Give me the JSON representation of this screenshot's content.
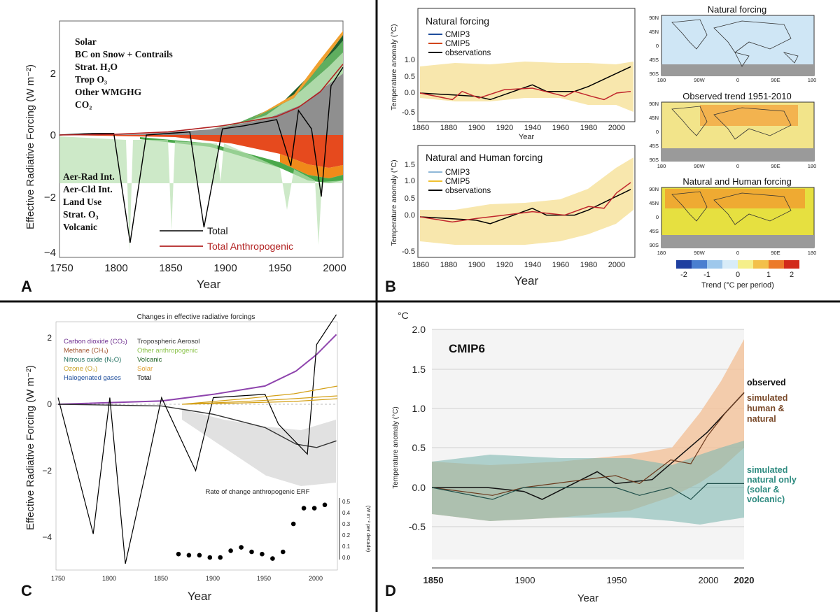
{
  "panels": {
    "A": {
      "letter": "A",
      "ylabel": "Effective Radiative Forcing (W m⁻²)",
      "xlabel": "Year",
      "yticks": [
        "2",
        "0",
        "−2",
        "−4"
      ],
      "xticks": [
        "1750",
        "1800",
        "1850",
        "1900",
        "1950",
        "2000"
      ],
      "legend_top": [
        "Solar",
        "BC on Snow + Contrails",
        "Strat. H₂O",
        "Trop O₃",
        "Other WMGHG",
        "CO₂"
      ],
      "legend_bottom": [
        "Aer-Rad Int.",
        "Aer-Cld Int.",
        "Land Use",
        "Strat. O₃",
        "Volcanic"
      ],
      "line_total": "Total",
      "line_anthro": "Total Anthropogenic"
    },
    "B": {
      "letter": "B",
      "xlabel": "Year",
      "top_title": "Natural forcing",
      "bottom_title": "Natural and Human forcing",
      "ylabel": "Temperature anomaly (°C)",
      "top_xlabel": "Year",
      "yticks": [
        "1.0",
        "0.5",
        "0.0",
        "-0.5"
      ],
      "y1label": "1.5",
      "xticks": [
        "1860",
        "1880",
        "1900",
        "1920",
        "1940",
        "1960",
        "1980",
        "2000"
      ],
      "legend": [
        "CMIP3",
        "CMIP5",
        "observations"
      ],
      "map_titles": [
        "Natural forcing",
        "Observed trend 1951-2010",
        "Natural and Human forcing"
      ],
      "map_lat": [
        "90N",
        "45N",
        "0",
        "45S",
        "90S"
      ],
      "map_lon": [
        "180",
        "90W",
        "0",
        "90E",
        "180"
      ],
      "colorbar_ticks": [
        "-2",
        "-1",
        "0",
        "1",
        "2"
      ],
      "colorbar_label": "Trend (°C per period)"
    },
    "C": {
      "letter": "C",
      "title": "Changes in effective radiative forcings",
      "ylabel": "Effective Radiative Forcing (W m⁻²)",
      "xlabel": "Year",
      "yticks": [
        "2",
        "0",
        "−2",
        "−4"
      ],
      "xticks": [
        "1750",
        "1800",
        "1850",
        "1900",
        "1950",
        "2000"
      ],
      "legend_left": [
        "Carbon dioxide (CO₂)",
        "Methane (CH₄)",
        "Nitrous oxide (N₂O)",
        "Ozone (O₃)",
        "Halogenated gases"
      ],
      "legend_right": [
        "Tropospheric Aerosol",
        "Other anthropogenic",
        "Volcanic",
        "Solar",
        "Total"
      ],
      "inset_title": "Rate of change anthropogenic ERF",
      "inset_yticks": [
        "0.5",
        "0.4",
        "0.3",
        "0.2",
        "0.1",
        "0.0"
      ],
      "inset_ylabel": "(W m⁻² per decade)"
    },
    "D": {
      "letter": "D",
      "unit": "°C",
      "label": "CMIP6",
      "ylabel": "Temperature anomaly (°C)",
      "xlabel": "Year",
      "yticks": [
        "2.0",
        "1.5",
        "1.0",
        "0.5",
        "0.0",
        "-0.5"
      ],
      "xticks": [
        "1850",
        "1900",
        "1950",
        "2000",
        "2020"
      ],
      "label_observed": "observed",
      "label_human": [
        "simulated",
        "human &",
        "natural"
      ],
      "label_natural": [
        "simulated",
        "natural only",
        "(solar &",
        "volcanic)"
      ]
    }
  },
  "colors": {
    "divider": "#111111",
    "total": "#000000",
    "anthro": "#b22222",
    "cmip3": "#1f4e9c",
    "cmip5": "#d2461c",
    "human_band": "#f2c29a",
    "natural_band": "#7fb7b0",
    "human_text": "#7a4a2a",
    "natural_text": "#2e8b80"
  },
  "chart_data": [
    {
      "panel": "A",
      "type": "area",
      "xlabel": "Year",
      "xlim": [
        1750,
        2011
      ],
      "ylim": [
        -4,
        3.5
      ],
      "series": [
        {
          "name": "Total",
          "x": [
            1750,
            1780,
            1800,
            1815,
            1830,
            1850,
            1870,
            1883,
            1900,
            1920,
            1950,
            1963,
            1970,
            1982,
            1991,
            2000,
            2011
          ],
          "values": [
            0.0,
            0.05,
            0.05,
            -3.5,
            0.0,
            0.05,
            0.1,
            -3.0,
            0.2,
            0.3,
            0.5,
            -1.0,
            0.8,
            0.2,
            -2.0,
            1.6,
            2.2
          ]
        },
        {
          "name": "Total Anthropogenic",
          "x": [
            1750,
            1800,
            1850,
            1900,
            1950,
            1970,
            1990,
            2011
          ],
          "values": [
            0.0,
            0.02,
            0.1,
            0.3,
            0.6,
            0.9,
            1.4,
            2.3
          ]
        },
        {
          "name": "CO₂",
          "x": [
            1750,
            1850,
            1900,
            1950,
            1980,
            2011
          ],
          "values": [
            0.0,
            0.15,
            0.4,
            0.6,
            1.0,
            1.8
          ]
        },
        {
          "name": "Aer-Cld Int.",
          "x": [
            1750,
            1850,
            1900,
            1950,
            1980,
            2011
          ],
          "values": [
            0.0,
            -0.05,
            -0.15,
            -0.35,
            -0.5,
            -0.45
          ]
        }
      ]
    },
    {
      "panel": "B-top",
      "type": "line",
      "title": "Natural forcing",
      "xlabel": "Year",
      "ylabel": "Temperature anomaly (°C)",
      "xlim": [
        1860,
        2012
      ],
      "ylim": [
        -0.5,
        1.1
      ],
      "series": [
        {
          "name": "observations",
          "x": [
            1860,
            1880,
            1900,
            1910,
            1940,
            1950,
            1970,
            1980,
            2000,
            2010
          ],
          "values": [
            0.0,
            -0.05,
            -0.1,
            -0.2,
            0.25,
            0.05,
            0.05,
            0.2,
            0.6,
            0.8
          ]
        },
        {
          "name": "CMIP5",
          "x": [
            1860,
            1883,
            1890,
            1902,
            1920,
            1940,
            1963,
            1970,
            1982,
            1991,
            2000,
            2010
          ],
          "values": [
            0.0,
            -0.2,
            0.05,
            -0.15,
            0.1,
            0.15,
            -0.1,
            0.05,
            -0.1,
            -0.2,
            0.0,
            0.05
          ]
        }
      ]
    },
    {
      "panel": "B-bottom",
      "type": "line",
      "title": "Natural and Human forcing",
      "xlabel": "Year",
      "ylabel": "Temperature anomaly (°C)",
      "xlim": [
        1860,
        2012
      ],
      "ylim": [
        -0.5,
        1.4
      ],
      "series": [
        {
          "name": "observations",
          "x": [
            1860,
            1880,
            1900,
            1910,
            1940,
            1950,
            1970,
            1980,
            2000,
            2010
          ],
          "values": [
            0.0,
            -0.05,
            -0.1,
            -0.2,
            0.25,
            0.05,
            0.05,
            0.2,
            0.6,
            0.8
          ]
        },
        {
          "name": "CMIP5",
          "x": [
            1860,
            1883,
            1900,
            1920,
            1940,
            1963,
            1980,
            1991,
            2000,
            2010
          ],
          "values": [
            0.0,
            -0.15,
            -0.05,
            0.05,
            0.15,
            0.05,
            0.3,
            0.25,
            0.7,
            1.0
          ]
        }
      ]
    },
    {
      "panel": "C",
      "type": "line",
      "title": "Changes in effective radiative forcings",
      "xlabel": "Year",
      "ylabel": "Effective Radiative Forcing (W m⁻²)",
      "xlim": [
        1750,
        2020
      ],
      "ylim": [
        -5,
        2.5
      ],
      "series": [
        {
          "name": "Carbon dioxide (CO₂)",
          "x": [
            1750,
            1850,
            1900,
            1950,
            1980,
            2000,
            2019
          ],
          "values": [
            0.0,
            0.1,
            0.3,
            0.55,
            1.0,
            1.5,
            2.1
          ]
        },
        {
          "name": "Tropospheric Aerosol",
          "x": [
            1750,
            1850,
            1900,
            1950,
            1980,
            2000,
            2019
          ],
          "values": [
            0.0,
            -0.05,
            -0.3,
            -0.7,
            -1.2,
            -1.3,
            -1.1
          ]
        },
        {
          "name": "Total",
          "x": [
            1750,
            1784,
            1800,
            1815,
            1835,
            1850,
            1883,
            1900,
            1950,
            1963,
            1991,
            2000,
            2019
          ],
          "values": [
            0.2,
            -3.9,
            0.2,
            -4.8,
            -2.0,
            0.2,
            -2.0,
            0.2,
            0.3,
            -0.6,
            -1.5,
            1.8,
            2.7
          ]
        }
      ]
    },
    {
      "panel": "C-inset",
      "type": "scatter",
      "title": "Rate of change anthropogenic ERF",
      "ylabel": "(W m⁻² per decade)",
      "ylim": [
        0.0,
        0.55
      ],
      "x": [
        1865,
        1875,
        1885,
        1895,
        1905,
        1915,
        1925,
        1935,
        1945,
        1955,
        1965,
        1975,
        1985,
        1995,
        2005
      ],
      "values": [
        0.03,
        0.02,
        0.02,
        0.0,
        0.0,
        0.06,
        0.09,
        0.05,
        0.03,
        -0.01,
        0.05,
        0.3,
        0.44,
        0.44,
        0.47
      ]
    },
    {
      "panel": "D",
      "type": "line",
      "xlabel": "Year",
      "ylabel": "Temperature anomaly (°C)",
      "xlim": [
        1850,
        2020
      ],
      "ylim": [
        -0.9,
        2.0
      ],
      "series": [
        {
          "name": "observed",
          "x": [
            1850,
            1880,
            1900,
            1910,
            1940,
            1950,
            1970,
            1980,
            2000,
            2010,
            2020
          ],
          "values": [
            0.0,
            0.0,
            -0.05,
            -0.15,
            0.2,
            0.05,
            0.1,
            0.3,
            0.7,
            0.95,
            1.2
          ]
        },
        {
          "name": "simulated human & natural",
          "x": [
            1850,
            1883,
            1900,
            1950,
            1963,
            1980,
            1991,
            2000,
            2010,
            2020
          ],
          "values": [
            0.0,
            -0.1,
            0.0,
            0.15,
            0.05,
            0.35,
            0.3,
            0.65,
            0.95,
            1.2
          ]
        },
        {
          "name": "simulated natural only (solar & volcanic)",
          "x": [
            1850,
            1883,
            1900,
            1950,
            1963,
            1980,
            1991,
            2000,
            2020
          ],
          "values": [
            0.0,
            -0.15,
            0.0,
            0.0,
            -0.1,
            0.0,
            -0.15,
            0.05,
            0.05
          ]
        }
      ]
    }
  ]
}
